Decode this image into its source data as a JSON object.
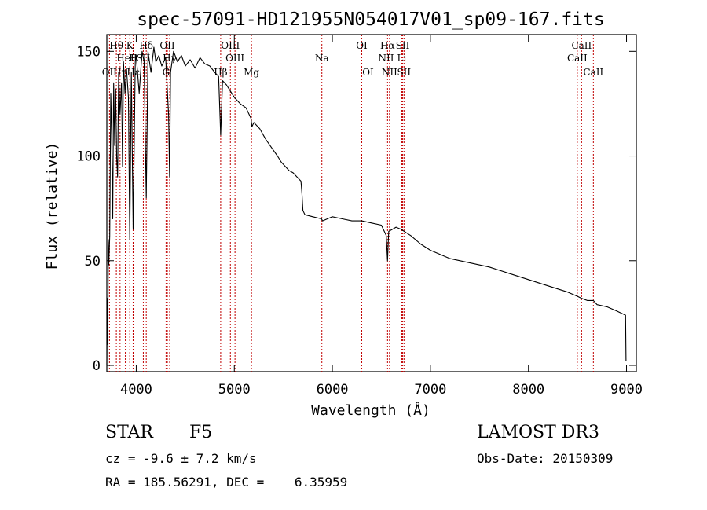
{
  "chart_data": {
    "type": "line",
    "title": "spec-57091-HD121955N054017V01_sp09-167.fits",
    "xlabel": "Wavelength (Å)",
    "ylabel": "Flux (relative)",
    "xlim": [
      3700,
      9100
    ],
    "ylim": [
      -3,
      158
    ],
    "x_ticks": [
      4000,
      5000,
      6000,
      7000,
      8000,
      9000
    ],
    "x_tick_labels": [
      "4000",
      "5000",
      "6000",
      "7000",
      "8000",
      "9000"
    ],
    "y_ticks": [
      0,
      50,
      100,
      150
    ],
    "y_tick_labels": [
      "0",
      "50",
      "100",
      "150"
    ],
    "series": [
      {
        "name": "flux",
        "x": [
          3700,
          3705,
          3710,
          3715,
          3720,
          3730,
          3740,
          3750,
          3760,
          3770,
          3780,
          3790,
          3800,
          3810,
          3820,
          3835,
          3850,
          3860,
          3870,
          3885,
          3900,
          3920,
          3934,
          3950,
          3968,
          3990,
          4000,
          4030,
          4060,
          4080,
          4102,
          4120,
          4150,
          4180,
          4200,
          4230,
          4260,
          4300,
          4330,
          4340,
          4350,
          4380,
          4420,
          4460,
          4500,
          4550,
          4600,
          4650,
          4700,
          4750,
          4800,
          4840,
          4861,
          4880,
          4920,
          4960,
          5000,
          5060,
          5120,
          5170,
          5180,
          5200,
          5260,
          5320,
          5380,
          5440,
          5480,
          5520,
          5560,
          5600,
          5640,
          5680,
          5690,
          5700,
          5720,
          5800,
          5890,
          5900,
          6000,
          6100,
          6200,
          6300,
          6400,
          6500,
          6550,
          6563,
          6575,
          6650,
          6700,
          6800,
          6900,
          7000,
          7200,
          7400,
          7600,
          7800,
          8000,
          8200,
          8400,
          8500,
          8542,
          8600,
          8662,
          8700,
          8800,
          8900,
          8990,
          8995
        ],
        "y": [
          0,
          32,
          10,
          60,
          48,
          62,
          130,
          110,
          70,
          135,
          105,
          132,
          100,
          90,
          140,
          120,
          135,
          95,
          145,
          130,
          142,
          128,
          60,
          140,
          65,
          145,
          148,
          130,
          150,
          145,
          80,
          150,
          140,
          152,
          145,
          148,
          143,
          147,
          120,
          90,
          140,
          150,
          145,
          148,
          143,
          146,
          142,
          147,
          144,
          143,
          140,
          138,
          110,
          136,
          134,
          131,
          128,
          125,
          123,
          118,
          114,
          116,
          113,
          108,
          104,
          100,
          97,
          95,
          93,
          92,
          90,
          88,
          82,
          74,
          72,
          71,
          70,
          69,
          71,
          70,
          69,
          69,
          68,
          67,
          62,
          50,
          64,
          66,
          65,
          62,
          58,
          55,
          51,
          49,
          47,
          44,
          41,
          38,
          35,
          33,
          32,
          31,
          31,
          29,
          28,
          26,
          24,
          2
        ]
      }
    ],
    "line_labels": [
      {
        "name": "Hθ",
        "x": 3797,
        "row": 1
      },
      {
        "name": "OII",
        "x": 3727,
        "row": 3
      },
      {
        "name": "Hη",
        "x": 3835,
        "row": 3
      },
      {
        "name": "HeI",
        "x": 3889,
        "row": 2
      },
      {
        "name": "K",
        "x": 3934,
        "row": 1
      },
      {
        "name": "H",
        "x": 3968,
        "row": 2
      },
      {
        "name": "Hε",
        "x": 3970,
        "row": 3
      },
      {
        "name": "Hδ",
        "x": 4102,
        "row": 1
      },
      {
        "name": "SII",
        "x": 4072,
        "row": 2
      },
      {
        "name": "OII",
        "x": 4317,
        "row": 1
      },
      {
        "name": "Hγ",
        "x": 4341,
        "row": 2
      },
      {
        "name": "G",
        "x": 4304,
        "row": 3
      },
      {
        "name": "Hβ",
        "x": 4861,
        "row": 3
      },
      {
        "name": "OIII",
        "x": 4960,
        "row": 1
      },
      {
        "name": "OIII",
        "x": 5007,
        "row": 2
      },
      {
        "name": "Mg",
        "x": 5175,
        "row": 3
      },
      {
        "name": "Na",
        "x": 5893,
        "row": 2
      },
      {
        "name": "OI",
        "x": 6300,
        "row": 1
      },
      {
        "name": "OI",
        "x": 6364,
        "row": 3
      },
      {
        "name": "Hα",
        "x": 6563,
        "row": 1
      },
      {
        "name": "NII",
        "x": 6548,
        "row": 2
      },
      {
        "name": "NII",
        "x": 6583,
        "row": 3
      },
      {
        "name": "SII",
        "x": 6717,
        "row": 1
      },
      {
        "name": "Li",
        "x": 6708,
        "row": 2
      },
      {
        "name": "SII",
        "x": 6731,
        "row": 3
      },
      {
        "name": "CaII",
        "x": 8498,
        "row": 2
      },
      {
        "name": "CaII",
        "x": 8542,
        "row": 1
      },
      {
        "name": "CaII",
        "x": 8662,
        "row": 3
      }
    ],
    "line_marker_color": "#c00000",
    "curve_color": "#000000"
  },
  "info": {
    "object_type": "STAR",
    "subclass": "F5",
    "survey": "LAMOST DR3",
    "redshift": "cz = -9.6 ± 7.2 km/s",
    "obs_date": "Obs-Date: 20150309",
    "coords": "RA = 185.56291, DEC =    6.35959"
  }
}
